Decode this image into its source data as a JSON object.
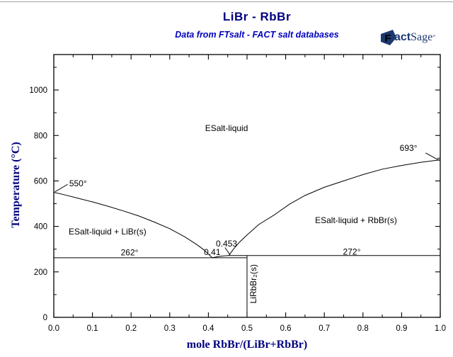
{
  "header": {
    "title": "LiBr - RbBr",
    "subtitle": "Data from FTsalt - FACT salt databases"
  },
  "logo": {
    "f": "F",
    "act": "act",
    "sage": "Sage",
    "mark": "”"
  },
  "chart_data": {
    "type": "line",
    "title": "LiBr - RbBr",
    "xlabel": "mole RbBr/(LiBr+RbBr)",
    "ylabel": "Temperature (°C)",
    "xlim": [
      0,
      1
    ],
    "ylim": [
      0,
      1156
    ],
    "x_ticks": {
      "major": [
        0,
        0.1,
        0.2,
        0.3,
        0.4,
        0.5,
        0.6,
        0.7,
        0.8,
        0.9,
        1.0
      ],
      "labels": [
        "0.0",
        "0.1",
        "0.2",
        "0.3",
        "0.4",
        "0.5",
        "0.6",
        "0.7",
        "0.8",
        "0.9",
        "1.0"
      ],
      "minor": [
        0.05,
        0.15,
        0.25,
        0.35,
        0.45,
        0.55,
        0.65,
        0.75,
        0.85,
        0.95
      ]
    },
    "y_ticks": {
      "major": [
        0,
        200,
        400,
        600,
        800,
        1000
      ],
      "labels": [
        "0",
        "200",
        "400",
        "600",
        "800",
        "1000"
      ],
      "minor": [
        100,
        300,
        500,
        700,
        900,
        1100
      ]
    },
    "series": [
      {
        "name": "liquidus-libr",
        "points": [
          [
            0,
            550
          ],
          [
            0.03,
            538
          ],
          [
            0.06,
            525
          ],
          [
            0.1,
            508
          ],
          [
            0.14,
            489
          ],
          [
            0.18,
            468
          ],
          [
            0.22,
            446
          ],
          [
            0.26,
            419
          ],
          [
            0.3,
            390
          ],
          [
            0.34,
            353
          ],
          [
            0.37,
            320
          ],
          [
            0.39,
            295
          ],
          [
            0.405,
            270
          ],
          [
            0.41,
            262
          ]
        ]
      },
      {
        "name": "liquidus-compound",
        "points": [
          [
            0.41,
            262
          ],
          [
            0.425,
            267
          ],
          [
            0.44,
            270
          ],
          [
            0.453,
            272
          ]
        ]
      },
      {
        "name": "liquidus-rbbr",
        "points": [
          [
            0.453,
            272
          ],
          [
            0.465,
            300
          ],
          [
            0.48,
            330
          ],
          [
            0.5,
            362
          ],
          [
            0.53,
            408
          ],
          [
            0.57,
            450
          ],
          [
            0.61,
            498
          ],
          [
            0.65,
            536
          ],
          [
            0.7,
            572
          ],
          [
            0.75,
            600
          ],
          [
            0.8,
            628
          ],
          [
            0.85,
            652
          ],
          [
            0.9,
            668
          ],
          [
            0.95,
            682
          ],
          [
            1.0,
            693
          ]
        ]
      }
    ],
    "isotherms": [
      {
        "name": "eutectic-line-262",
        "T": 262,
        "x1": 0,
        "x2": 0.5
      },
      {
        "name": "peritectic-line-272",
        "T": 272,
        "x1": 0.453,
        "x2": 1.0
      }
    ],
    "verticals": [
      {
        "name": "compound-line-librbbr2",
        "x": 0.5,
        "T1": 0,
        "T2": 272
      }
    ],
    "leaders": [
      {
        "name": "leader-550",
        "pts": [
          [
            0.036,
            585
          ],
          [
            0.003,
            552
          ]
        ]
      },
      {
        "name": "leader-693",
        "pts": [
          [
            0.962,
            723
          ],
          [
            0.998,
            690
          ]
        ]
      },
      {
        "name": "leader-0453",
        "pts": [
          [
            0.443,
            307
          ],
          [
            0.456,
            275
          ]
        ]
      }
    ],
    "annotations": [
      {
        "name": "libr-melting-point",
        "text": "550°",
        "x": 0.04,
        "T": 577,
        "anchor": "start"
      },
      {
        "name": "rbbr-melting-point",
        "text": "693°",
        "x": 0.895,
        "T": 733,
        "anchor": "start"
      },
      {
        "name": "eutectic-temperature",
        "text": "262°",
        "x": 0.196,
        "T": 272,
        "anchor": "middle"
      },
      {
        "name": "peritectic-temperature",
        "text": "272°",
        "x": 0.771,
        "T": 276,
        "anchor": "middle"
      },
      {
        "name": "peritectic-composition",
        "text": "0.453",
        "x": 0.447,
        "T": 312,
        "anchor": "middle"
      },
      {
        "name": "eutectic-composition",
        "text": "0.41",
        "x": 0.41,
        "T": 274,
        "anchor": "middle"
      }
    ],
    "region_labels": [
      {
        "name": "region-liquid",
        "text": "ESalt-liquid",
        "x": 0.447,
        "T": 820,
        "rotate": 0
      },
      {
        "name": "region-liquid-libr",
        "text": "ESalt-liquid + LiBr(s)",
        "x": 0.139,
        "T": 364,
        "rotate": 0
      },
      {
        "name": "region-liquid-rbbr",
        "text": "ESalt-liquid + RbBr(s)",
        "x": 0.782,
        "T": 414,
        "rotate": 0
      },
      {
        "name": "region-librbbr2",
        "text": "LiRbBr₂(s)",
        "x": 0.524,
        "T": 147,
        "rotate": -90
      }
    ],
    "colors": {
      "line": "#000000",
      "frame": "#000000",
      "title": "#000080",
      "subtitle": "#0000C0",
      "axis_title": "#000080",
      "logo": "#1c3870"
    },
    "legend": "none",
    "grid": "off"
  }
}
